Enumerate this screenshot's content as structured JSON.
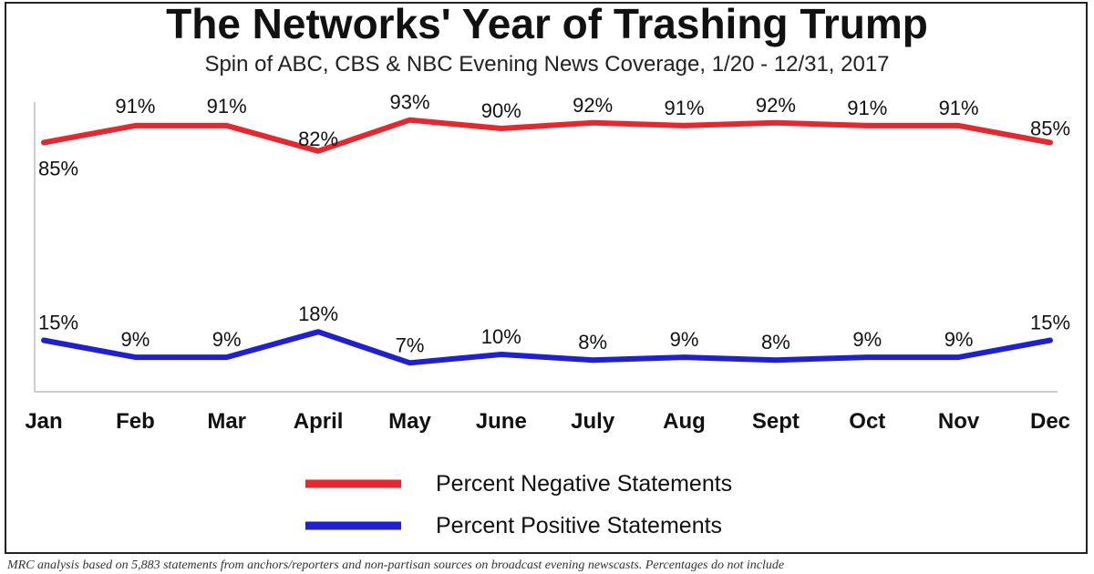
{
  "title": "The Networks' Year of Trashing Trump",
  "subtitle": "Spin of ABC, CBS & NBC Evening News Coverage, 1/20 - 12/31, 2017",
  "footnote": "MRC analysis based on 5,883 statements from anchors/reporters and non-partisan sources on broadcast evening newscasts. Percentages do not include",
  "chart_data": {
    "type": "line",
    "categories": [
      "Jan",
      "Feb",
      "Mar",
      "April",
      "May",
      "June",
      "July",
      "Aug",
      "Sept",
      "Oct",
      "Nov",
      "Dec"
    ],
    "ylim": [
      0,
      100
    ],
    "grid": false,
    "legend_position": "bottom-center",
    "series": [
      {
        "name": "Percent Negative Statements",
        "color": "#e8262d",
        "values": [
          85,
          91,
          91,
          82,
          93,
          90,
          92,
          91,
          92,
          91,
          91,
          85
        ],
        "labels": [
          "85%",
          "91%",
          "91%",
          "82%",
          "93%",
          "90%",
          "92%",
          "91%",
          "92%",
          "91%",
          "91%",
          "85%"
        ]
      },
      {
        "name": "Percent Positive Statements",
        "color": "#1f1fd6",
        "values": [
          15,
          9,
          9,
          18,
          7,
          10,
          8,
          9,
          8,
          9,
          9,
          15
        ],
        "labels": [
          "15%",
          "9%",
          "9%",
          "18%",
          "7%",
          "10%",
          "8%",
          "9%",
          "8%",
          "9%",
          "9%",
          "15%"
        ]
      }
    ]
  }
}
